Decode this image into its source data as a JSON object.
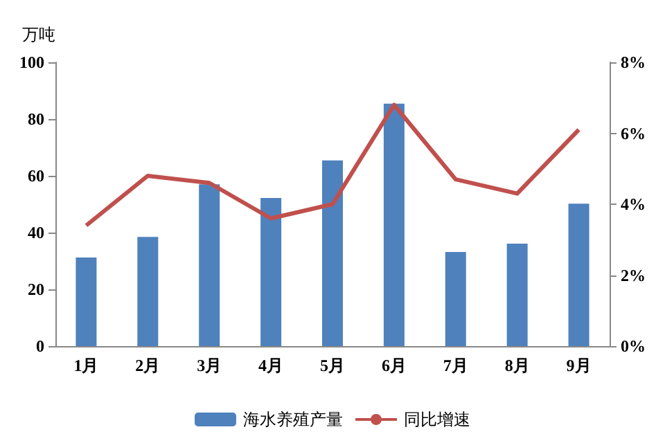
{
  "chart_data": {
    "type": "bar",
    "ylabel": "万吨",
    "categories": [
      "1月",
      "2月",
      "3月",
      "4月",
      "5月",
      "6月",
      "7月",
      "8月",
      "9月"
    ],
    "series": [
      {
        "name": "海水养殖产量",
        "color": "#4f81bd",
        "values": [
          31.2,
          38.5,
          57,
          52.2,
          65.4,
          85.4,
          33.2,
          36.1,
          50.2
        ]
      },
      {
        "name": "同比增速",
        "type": "line",
        "axis": "y2",
        "color": "#c0504d",
        "marker": "none",
        "values": [
          3.4,
          4.8,
          4.6,
          3.6,
          4.0,
          6.8,
          4.7,
          4.3,
          6.1
        ]
      }
    ],
    "ylim": [
      0,
      100
    ],
    "yticks": [
      0,
      20,
      40,
      60,
      80,
      100
    ],
    "y2lim": [
      0,
      8
    ],
    "y2ticks": [
      {
        "value": 0,
        "label": "0%"
      },
      {
        "value": 2,
        "label": "2%"
      },
      {
        "value": 4,
        "label": "4%"
      },
      {
        "value": 6,
        "label": "6%"
      },
      {
        "value": 8,
        "label": "8%"
      }
    ],
    "grid": false,
    "legend": "bottom"
  }
}
